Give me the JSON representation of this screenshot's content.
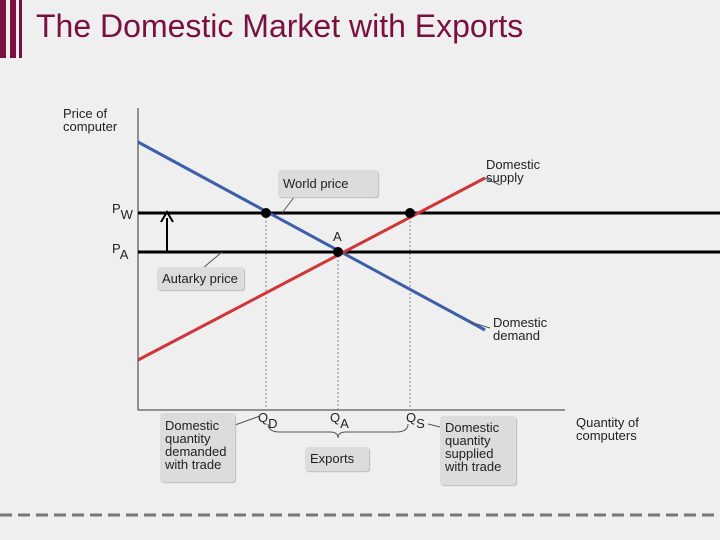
{
  "header": {
    "title": "The Domestic Market with Exports"
  },
  "axes": {
    "y_label": "Price of computer",
    "x_label": "Quantity of computers"
  },
  "curves": {
    "supply": "Domestic supply",
    "demand": "Domestic demand"
  },
  "prices": {
    "world": {
      "main": "P",
      "sub": "W"
    },
    "autarky": {
      "main": "P",
      "sub": "A"
    }
  },
  "points": {
    "equilibrium": "A"
  },
  "callouts": {
    "world_price": "World price",
    "autarky_price": "Autarky price",
    "exports": "Exports",
    "quantity_demanded": "Domestic quantity demanded with trade",
    "quantity_supplied": "Domestic quantity supplied with trade"
  },
  "quantities": {
    "demanded": {
      "main": "Q",
      "sub": "D"
    },
    "autarky": {
      "main": "Q",
      "sub": "A"
    },
    "supplied": {
      "main": "Q",
      "sub": "S"
    }
  }
}
